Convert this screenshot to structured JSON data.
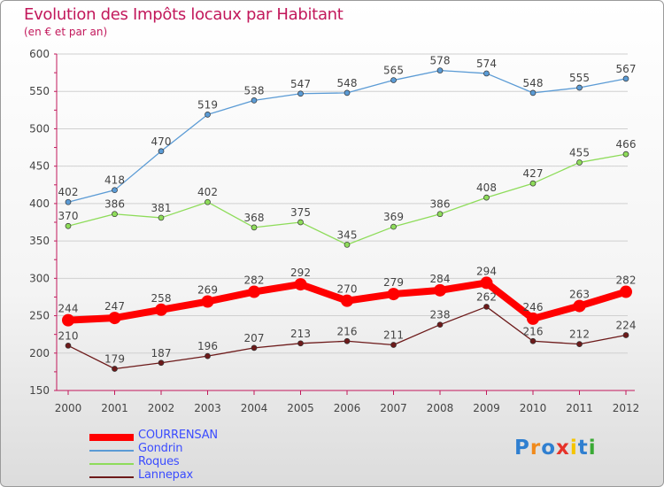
{
  "header": {
    "title": "Evolution des Impôts locaux par Habitant",
    "subtitle": "(en € et par an)"
  },
  "logo": {
    "text": "Proxiti"
  },
  "colors": {
    "title": "#c2185b",
    "axis": "#c2185b",
    "grid": "#d0d0d0",
    "label": "#444444"
  },
  "chart_data": {
    "type": "line",
    "title": "Evolution des Impôts locaux par Habitant",
    "subtitle": "(en € et par an)",
    "x": [
      "2000",
      "2001",
      "2002",
      "2003",
      "2004",
      "2005",
      "2006",
      "2007",
      "2008",
      "2009",
      "2010",
      "2011",
      "2012"
    ],
    "ylim": [
      150,
      600
    ],
    "yticks": [
      150,
      200,
      250,
      300,
      350,
      400,
      450,
      500,
      550,
      600
    ],
    "grid": "horizontal",
    "legend_position": "bottom-left",
    "series": [
      {
        "name": "COURRENSAN",
        "color": "#ff0000",
        "text_color": "#3b4cff",
        "emphasis": true,
        "values": [
          244,
          247,
          258,
          269,
          282,
          292,
          270,
          279,
          284,
          294,
          246,
          263,
          282
        ]
      },
      {
        "name": "Gondrin",
        "color": "#5b9bd5",
        "text_color": "#3b4cff",
        "emphasis": false,
        "values": [
          402,
          418,
          470,
          519,
          538,
          547,
          548,
          565,
          578,
          574,
          548,
          555,
          567
        ]
      },
      {
        "name": "Roques",
        "color": "#8edc5a",
        "text_color": "#3b4cff",
        "emphasis": false,
        "values": [
          370,
          386,
          381,
          402,
          368,
          375,
          345,
          369,
          386,
          408,
          427,
          455,
          466
        ]
      },
      {
        "name": "Lannepax",
        "color": "#6d1a1a",
        "text_color": "#3b4cff",
        "emphasis": false,
        "values": [
          210,
          179,
          187,
          196,
          207,
          213,
          216,
          211,
          238,
          262,
          216,
          212,
          224
        ]
      }
    ]
  }
}
